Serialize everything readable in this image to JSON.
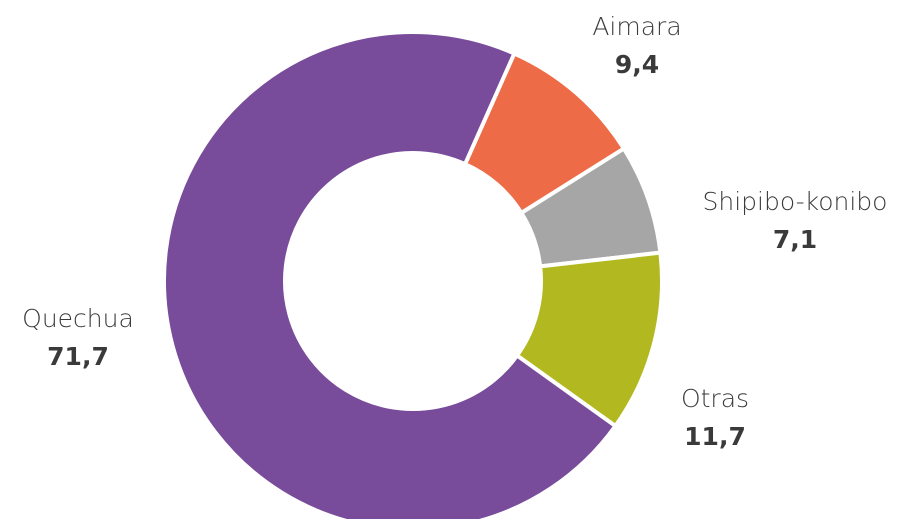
{
  "chart_data": {
    "type": "donut",
    "categories": [
      "Aimara",
      "Shipibo-konibo",
      "Otras",
      "Quechua"
    ],
    "values": [
      9.4,
      7.1,
      11.7,
      71.7
    ],
    "value_labels": [
      "9,4",
      "7,1",
      "11,7",
      "71,7"
    ],
    "colors": [
      "#ee6b47",
      "#a6a6a6",
      "#b2b920",
      "#784c9a"
    ]
  }
}
